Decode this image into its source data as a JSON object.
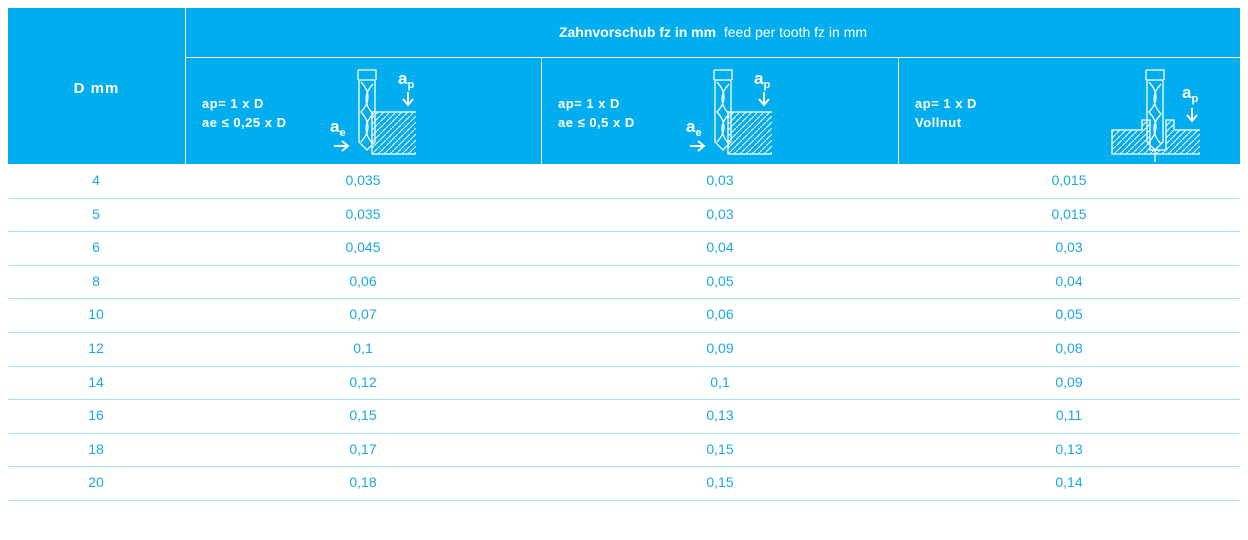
{
  "header": {
    "title_bold": "Zahnvorschub fz in mm",
    "title_normal": "feed per tooth fz in mm",
    "first_column": "D mm",
    "columns": [
      {
        "lines": [
          "ap= 1 x D",
          "ae ≤ 0,25 x D"
        ],
        "icon_labels": [
          {
            "letter": "a",
            "sub": "p"
          },
          {
            "letter": "a",
            "sub": "e"
          }
        ]
      },
      {
        "lines": [
          "ap= 1 x D",
          "ae ≤ 0,5 x D"
        ],
        "icon_labels": [
          {
            "letter": "a",
            "sub": "p"
          },
          {
            "letter": "a",
            "sub": "e"
          }
        ]
      },
      {
        "lines": [
          "ap= 1 x D",
          "Vollnut"
        ],
        "icon_labels": [
          {
            "letter": "a",
            "sub": "p"
          }
        ]
      }
    ]
  },
  "table": {
    "rows": [
      [
        "4",
        "0,035",
        "0,03",
        "0,015"
      ],
      [
        "5",
        "0,035",
        "0,03",
        "0,015"
      ],
      [
        "6",
        "0,045",
        "0,04",
        "0,03"
      ],
      [
        "8",
        "0,06",
        "0,05",
        "0,04"
      ],
      [
        "10",
        "0,07",
        "0,06",
        "0,05"
      ],
      [
        "12",
        "0,1",
        "0,09",
        "0,08"
      ],
      [
        "14",
        "0,12",
        "0,1",
        "0,09"
      ],
      [
        "16",
        "0,15",
        "0,13",
        "0,11"
      ],
      [
        "18",
        "0,17",
        "0,15",
        "0,13"
      ],
      [
        "20",
        "0,18",
        "0,15",
        "0,14"
      ]
    ]
  }
}
